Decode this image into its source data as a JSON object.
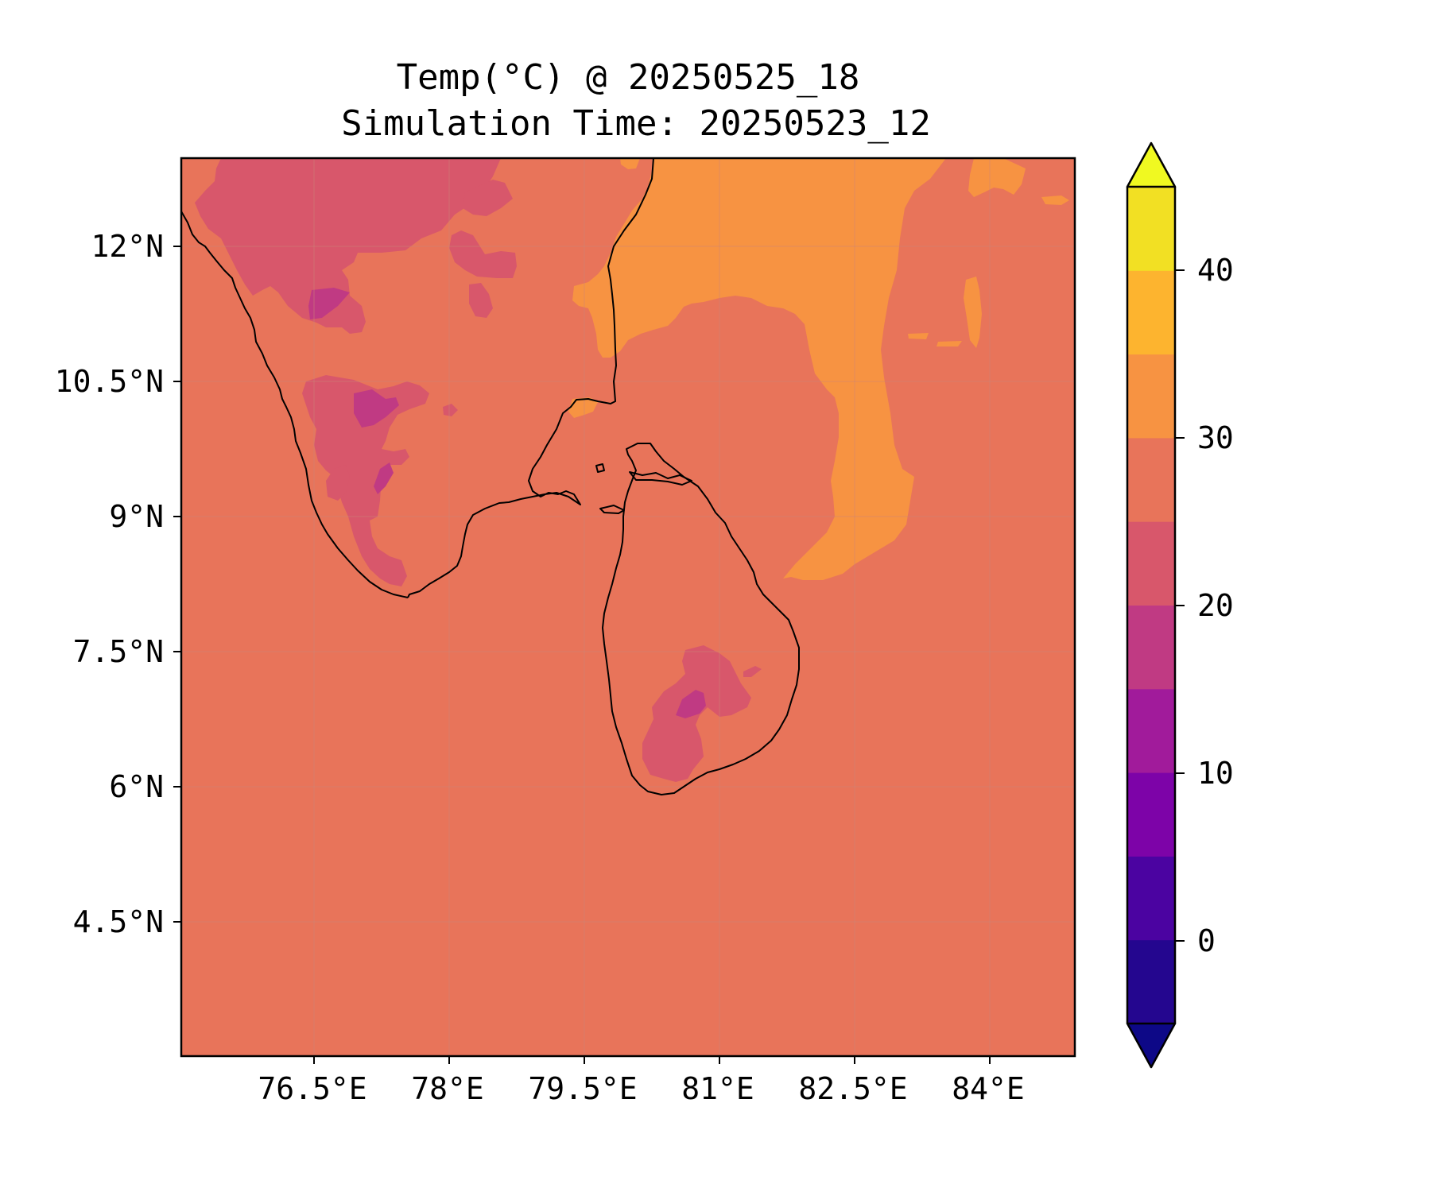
{
  "title": {
    "line1": "Temp(°C) @ 20250525_18",
    "line2": "Simulation Time: 20250523_12"
  },
  "map": {
    "x_ticks": [
      "76.5°E",
      "78°E",
      "79.5°E",
      "81°E",
      "82.5°E",
      "84°E"
    ],
    "y_ticks": [
      "12°N",
      "10.5°N",
      "9°N",
      "7.5°N",
      "6°N",
      "4.5°N"
    ],
    "background_color": "#e8745a"
  },
  "colorbar": {
    "ticks": [
      "0",
      "10",
      "20",
      "30",
      "40"
    ],
    "levels": [
      -5,
      0,
      5,
      10,
      15,
      20,
      25,
      30,
      35,
      40,
      45
    ],
    "colors": [
      "#24068f",
      "#4b03a1",
      "#7d03a8",
      "#a11b9b",
      "#c03a83",
      "#d8576b",
      "#e8745a",
      "#f79342",
      "#fdb42f",
      "#f2e023"
    ],
    "under_color": "#0d0887",
    "over_color": "#f0f921",
    "extend": "both"
  }
}
